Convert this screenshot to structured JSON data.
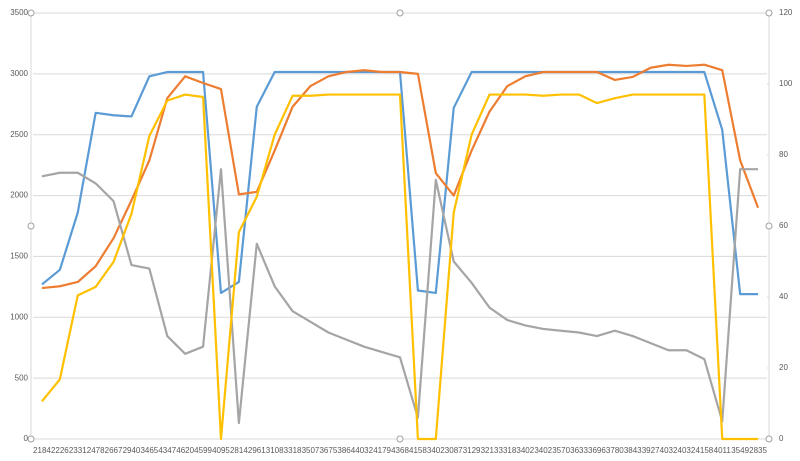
{
  "chart_data": {
    "type": "line",
    "categories": [
      2184,
      2226,
      2331,
      2478,
      2667,
      2940,
      3465,
      4347,
      4620,
      4599,
      4095,
      2814,
      2961,
      3108,
      3318,
      3507,
      3675,
      3864,
      4032,
      4179,
      4368,
      4158,
      3402,
      3087,
      3129,
      3213,
      3318,
      3402,
      3402,
      3570,
      3633,
      3696,
      3780,
      3843,
      3927,
      4032,
      4032,
      4158,
      4011,
      3549,
      2835
    ],
    "ylim": [
      0,
      3500
    ],
    "yticks": [
      0,
      500,
      1000,
      1500,
      2000,
      2500,
      3000,
      3500
    ],
    "y2lim": [
      0,
      120
    ],
    "y2ticks": [
      0,
      20,
      40,
      60,
      80,
      100,
      120
    ],
    "grid": true,
    "series": [
      {
        "color": "#5b9bd5",
        "values": [
          1270,
          1390,
          1860,
          2680,
          2660,
          2650,
          2980,
          3015,
          3015,
          3015,
          1200,
          1290,
          2730,
          3015,
          3015,
          3015,
          3015,
          3015,
          3015,
          3015,
          3015,
          1220,
          1200,
          2720,
          3015,
          3015,
          3015,
          3015,
          3015,
          3015,
          3015,
          3015,
          3015,
          3015,
          3015,
          3015,
          3015,
          3015,
          2540,
          1190,
          1190
        ]
      },
      {
        "color": "#ed7d31",
        "values": [
          1240,
          1255,
          1290,
          1420,
          1650,
          1960,
          2290,
          2800,
          2980,
          2925,
          2875,
          2010,
          2030,
          2370,
          2730,
          2900,
          2980,
          3015,
          3030,
          3015,
          3015,
          3000,
          2185,
          2000,
          2370,
          2690,
          2900,
          2980,
          3015,
          3015,
          3015,
          3015,
          2950,
          2975,
          3050,
          3075,
          3065,
          3075,
          3030,
          2290,
          1900
        ]
      },
      {
        "color": "#a5a5a5",
        "axis": "y2",
        "values": [
          74,
          75,
          75,
          72,
          67,
          49,
          48,
          29,
          24,
          26,
          76,
          4.5,
          55,
          43,
          36,
          33,
          30,
          28,
          26,
          24.5,
          23,
          6,
          73,
          50,
          44,
          37,
          33.5,
          32,
          31,
          30.5,
          30,
          29,
          30.5,
          29,
          27,
          25,
          25,
          22.5,
          5,
          76,
          76
        ]
      },
      {
        "color": "#ffc000",
        "values": [
          310,
          490,
          1180,
          1250,
          1455,
          1850,
          2490,
          2780,
          2830,
          2810,
          0,
          1700,
          1990,
          2500,
          2820,
          2820,
          2830,
          2830,
          2830,
          2830,
          2830,
          0,
          0,
          1860,
          2500,
          2830,
          2830,
          2830,
          2820,
          2830,
          2830,
          2760,
          2800,
          2830,
          2830,
          2830,
          2830,
          2830,
          0,
          0,
          0
        ]
      }
    ]
  }
}
